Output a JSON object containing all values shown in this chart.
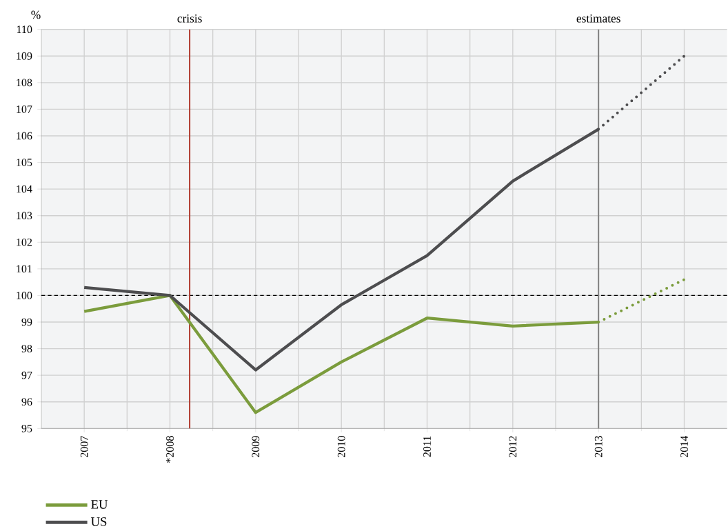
{
  "chart_data": {
    "type": "line",
    "ylabel": "%",
    "x": [
      2007,
      2008,
      2009,
      2010,
      2011,
      2012,
      2013,
      2014
    ],
    "xlim": [
      2006.5,
      2014.5
    ],
    "xticks": [
      {
        "value": 2007,
        "label": "2007"
      },
      {
        "value": 2008,
        "label": "*2008"
      },
      {
        "value": 2009,
        "label": "2009"
      },
      {
        "value": 2010,
        "label": "2010"
      },
      {
        "value": 2011,
        "label": "2011"
      },
      {
        "value": 2012,
        "label": "2012"
      },
      {
        "value": 2013,
        "label": "2013"
      },
      {
        "value": 2014,
        "label": "2014"
      }
    ],
    "ylim": [
      95,
      110
    ],
    "yticks": [
      95,
      96,
      97,
      98,
      99,
      100,
      101,
      102,
      103,
      104,
      105,
      106,
      107,
      108,
      109,
      110
    ],
    "series": [
      {
        "name": "EU",
        "color": "#7b9c3c",
        "values": [
          99.4,
          100.0,
          95.6,
          97.5,
          99.15,
          98.85,
          99.0,
          null
        ]
      },
      {
        "name": "US",
        "color": "#4d4d4f",
        "values": [
          100.3,
          100.0,
          97.2,
          99.65,
          101.5,
          104.3,
          106.25,
          null
        ]
      },
      {
        "color": "#7b9c3c",
        "line_style": "dotted",
        "values": [
          null,
          null,
          null,
          null,
          null,
          null,
          99.0,
          100.6
        ]
      },
      {
        "color": "#4d4d4f",
        "line_style": "dotted",
        "values": [
          null,
          null,
          null,
          null,
          null,
          null,
          106.25,
          109.0
        ]
      }
    ],
    "ref_lines": [
      {
        "axis": "y",
        "value": 100,
        "color": "#000000",
        "line_style": "dashed"
      },
      {
        "axis": "x",
        "value": 2008.23,
        "label": "crisis",
        "color": "#b03a2e"
      },
      {
        "axis": "x",
        "value": 2013,
        "label": "estimates",
        "color": "#808080"
      }
    ],
    "grid": true,
    "legend": "bottom left",
    "marker": "none",
    "line_style": "solid"
  }
}
